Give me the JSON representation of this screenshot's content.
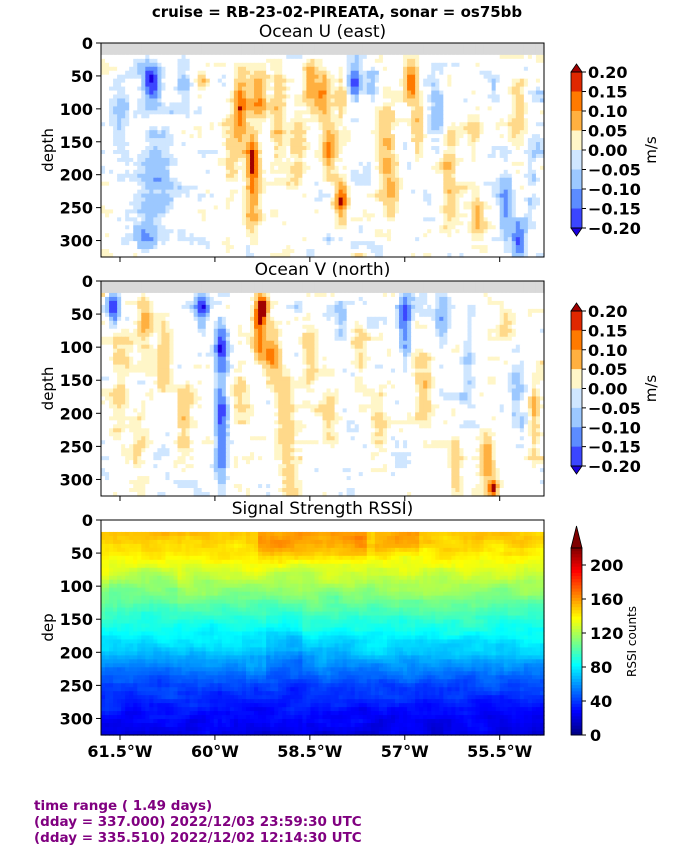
{
  "suptitle": "cruise = RB-23-02-PIREATA,  sonar = os75bb",
  "footer": {
    "line1": "time range ( 1.49 days)",
    "line2": "(dday = 337.000) 2022/12/03 23:59:30 UTC",
    "line3": "(dday = 335.510) 2022/12/02 12:14:30 UTC"
  },
  "colors": {
    "missing": "#d9d9d9",
    "velocity_levels": [
      "#1a00e0",
      "#3b46ff",
      "#5c8cff",
      "#9cc8ff",
      "#cfe6ff",
      "#ffffff",
      "#fff6c8",
      "#ffd98a",
      "#ffb040",
      "#ff7a00",
      "#e02800",
      "#a00000"
    ],
    "rssi_colormap": [
      "#00007f",
      "#0000ff",
      "#007fff",
      "#00ffff",
      "#7fff7f",
      "#ffff00",
      "#ff7f00",
      "#ff0000",
      "#7f0000"
    ]
  },
  "chart_data": [
    {
      "type": "heatmap",
      "title": "Ocean U (east)",
      "ylabel": "depth",
      "colorbar_label": "m/s",
      "xlim": [
        -61.8,
        -54.8
      ],
      "ylim": [
        325,
        0
      ],
      "xticks": [
        -61.5,
        -60,
        -58.5,
        -57,
        -55.5
      ],
      "xticklabels": [],
      "yticks": [
        0,
        50,
        100,
        150,
        200,
        250,
        300
      ],
      "yticklabels": [
        "0",
        "50",
        "100",
        "150",
        "200",
        "250",
        "300"
      ],
      "levels": [
        -0.2,
        -0.15,
        -0.1,
        -0.05,
        0,
        0.05,
        0.1,
        0.15,
        0.2
      ],
      "colorbar_ticks": [
        "0.20",
        "0.15",
        "0.10",
        "0.05",
        "0.00",
        "−0.05",
        "−0.10",
        "−0.15",
        "−0.20"
      ],
      "extend": "both",
      "features": [
        {
          "lon": -61.0,
          "depth": 60,
          "value": -0.22,
          "wlon": 0.12,
          "wdep": 25
        },
        {
          "lon": -61.5,
          "depth": 120,
          "value": -0.08,
          "wlon": 0.15,
          "wdep": 60
        },
        {
          "lon": -60.9,
          "depth": 200,
          "value": -0.08,
          "wlon": 0.3,
          "wdep": 80
        },
        {
          "lon": -61.1,
          "depth": 300,
          "value": -0.1,
          "wlon": 0.15,
          "wdep": 25
        },
        {
          "lon": -60.5,
          "depth": 60,
          "value": -0.12,
          "wlon": 0.12,
          "wdep": 25
        },
        {
          "lon": -60.2,
          "depth": 60,
          "value": 0.08,
          "wlon": 0.1,
          "wdep": 20
        },
        {
          "lon": -59.75,
          "depth": 200,
          "value": 0.06,
          "wlon": 0.12,
          "wdep": 60
        },
        {
          "lon": -59.6,
          "depth": 100,
          "value": 0.2,
          "wlon": 0.12,
          "wdep": 50
        },
        {
          "lon": -59.4,
          "depth": 180,
          "value": 0.22,
          "wlon": 0.1,
          "wdep": 40
        },
        {
          "lon": -59.3,
          "depth": 80,
          "value": 0.16,
          "wlon": 0.12,
          "wdep": 35
        },
        {
          "lon": -59.4,
          "depth": 250,
          "value": 0.1,
          "wlon": 0.12,
          "wdep": 50
        },
        {
          "lon": -59.0,
          "depth": 100,
          "value": 0.1,
          "wlon": 0.12,
          "wdep": 60
        },
        {
          "lon": -58.7,
          "depth": 160,
          "value": 0.07,
          "wlon": 0.12,
          "wdep": 60
        },
        {
          "lon": -58.5,
          "depth": 60,
          "value": 0.18,
          "wlon": 0.1,
          "wdep": 30
        },
        {
          "lon": -58.3,
          "depth": 80,
          "value": 0.15,
          "wlon": 0.12,
          "wdep": 35
        },
        {
          "lon": -58.2,
          "depth": 160,
          "value": 0.17,
          "wlon": 0.1,
          "wdep": 40
        },
        {
          "lon": -58.0,
          "depth": 240,
          "value": 0.22,
          "wlon": 0.1,
          "wdep": 30
        },
        {
          "lon": -58.0,
          "depth": 80,
          "value": 0.07,
          "wlon": 0.1,
          "wdep": 40
        },
        {
          "lon": -57.8,
          "depth": 60,
          "value": -0.16,
          "wlon": 0.1,
          "wdep": 25
        },
        {
          "lon": -57.5,
          "depth": 60,
          "value": -0.07,
          "wlon": 0.1,
          "wdep": 25
        },
        {
          "lon": -57.3,
          "depth": 150,
          "value": 0.1,
          "wlon": 0.15,
          "wdep": 80
        },
        {
          "lon": -57.2,
          "depth": 240,
          "value": 0.08,
          "wlon": 0.12,
          "wdep": 40
        },
        {
          "lon": -56.9,
          "depth": 60,
          "value": 0.17,
          "wlon": 0.1,
          "wdep": 30
        },
        {
          "lon": -56.8,
          "depth": 140,
          "value": 0.1,
          "wlon": 0.1,
          "wdep": 50
        },
        {
          "lon": -56.5,
          "depth": 100,
          "value": -0.08,
          "wlon": 0.15,
          "wdep": 50
        },
        {
          "lon": -56.3,
          "depth": 200,
          "value": 0.09,
          "wlon": 0.12,
          "wdep": 80
        },
        {
          "lon": -55.9,
          "depth": 150,
          "value": 0.06,
          "wlon": 0.12,
          "wdep": 50
        },
        {
          "lon": -55.85,
          "depth": 260,
          "value": 0.12,
          "wlon": 0.1,
          "wdep": 30
        },
        {
          "lon": -55.6,
          "depth": 70,
          "value": -0.06,
          "wlon": 0.12,
          "wdep": 30
        },
        {
          "lon": -55.4,
          "depth": 250,
          "value": -0.12,
          "wlon": 0.12,
          "wdep": 50
        },
        {
          "lon": -55.2,
          "depth": 300,
          "value": -0.18,
          "wlon": 0.1,
          "wdep": 25
        },
        {
          "lon": -55.2,
          "depth": 100,
          "value": 0.08,
          "wlon": 0.12,
          "wdep": 50
        },
        {
          "lon": -55.0,
          "depth": 200,
          "value": -0.07,
          "wlon": 0.12,
          "wdep": 60
        }
      ]
    },
    {
      "type": "heatmap",
      "title": "Ocean V (north)",
      "ylabel": "depth",
      "colorbar_label": "m/s",
      "xlim": [
        -61.8,
        -54.8
      ],
      "ylim": [
        325,
        0
      ],
      "xticks": [
        -61.5,
        -60,
        -58.5,
        -57,
        -55.5
      ],
      "xticklabels": [],
      "yticks": [
        0,
        50,
        100,
        150,
        200,
        250,
        300
      ],
      "yticklabels": [
        "0",
        "50",
        "100",
        "150",
        "200",
        "250",
        "300"
      ],
      "levels": [
        -0.2,
        -0.15,
        -0.1,
        -0.05,
        0,
        0.05,
        0.1,
        0.15,
        0.2
      ],
      "colorbar_ticks": [
        "0.20",
        "0.15",
        "0.10",
        "0.05",
        "0.00",
        "−0.05",
        "−0.10",
        "−0.15",
        "−0.20"
      ],
      "extend": "both",
      "features": [
        {
          "lon": -61.6,
          "depth": 40,
          "value": -0.22,
          "wlon": 0.1,
          "wdep": 25
        },
        {
          "lon": -61.5,
          "depth": 160,
          "value": 0.07,
          "wlon": 0.15,
          "wdep": 80
        },
        {
          "lon": -61.1,
          "depth": 60,
          "value": 0.12,
          "wlon": 0.12,
          "wdep": 40
        },
        {
          "lon": -61.2,
          "depth": 250,
          "value": 0.06,
          "wlon": 0.15,
          "wdep": 60
        },
        {
          "lon": -60.8,
          "depth": 120,
          "value": 0.08,
          "wlon": 0.12,
          "wdep": 60
        },
        {
          "lon": -60.5,
          "depth": 200,
          "value": 0.1,
          "wlon": 0.12,
          "wdep": 50
        },
        {
          "lon": -60.2,
          "depth": 40,
          "value": -0.18,
          "wlon": 0.1,
          "wdep": 25
        },
        {
          "lon": -59.9,
          "depth": 100,
          "value": -0.2,
          "wlon": 0.1,
          "wdep": 35
        },
        {
          "lon": -59.9,
          "depth": 200,
          "value": -0.18,
          "wlon": 0.1,
          "wdep": 50
        },
        {
          "lon": -59.9,
          "depth": 280,
          "value": -0.12,
          "wlon": 0.1,
          "wdep": 40
        },
        {
          "lon": -59.6,
          "depth": 150,
          "value": 0.06,
          "wlon": 0.12,
          "wdep": 60
        },
        {
          "lon": -59.3,
          "depth": 80,
          "value": 0.18,
          "wlon": 0.1,
          "wdep": 45
        },
        {
          "lon": -59.25,
          "depth": 40,
          "value": 0.22,
          "wlon": 0.1,
          "wdep": 20
        },
        {
          "lon": -59.1,
          "depth": 110,
          "value": 0.15,
          "wlon": 0.12,
          "wdep": 40
        },
        {
          "lon": -58.9,
          "depth": 200,
          "value": 0.1,
          "wlon": 0.15,
          "wdep": 60
        },
        {
          "lon": -58.8,
          "depth": 280,
          "value": 0.06,
          "wlon": 0.15,
          "wdep": 40
        },
        {
          "lon": -58.5,
          "depth": 100,
          "value": 0.08,
          "wlon": 0.12,
          "wdep": 60
        },
        {
          "lon": -58.2,
          "depth": 200,
          "value": 0.06,
          "wlon": 0.15,
          "wdep": 60
        },
        {
          "lon": -58.0,
          "depth": 60,
          "value": -0.06,
          "wlon": 0.12,
          "wdep": 40
        },
        {
          "lon": -57.7,
          "depth": 120,
          "value": 0.07,
          "wlon": 0.12,
          "wdep": 60
        },
        {
          "lon": -57.4,
          "depth": 220,
          "value": 0.07,
          "wlon": 0.12,
          "wdep": 60
        },
        {
          "lon": -57.0,
          "depth": 50,
          "value": -0.18,
          "wlon": 0.1,
          "wdep": 30
        },
        {
          "lon": -57.0,
          "depth": 100,
          "value": -0.1,
          "wlon": 0.1,
          "wdep": 30
        },
        {
          "lon": -56.7,
          "depth": 160,
          "value": 0.1,
          "wlon": 0.15,
          "wdep": 60
        },
        {
          "lon": -56.4,
          "depth": 60,
          "value": -0.08,
          "wlon": 0.12,
          "wdep": 35
        },
        {
          "lon": -56.2,
          "depth": 280,
          "value": 0.12,
          "wlon": 0.1,
          "wdep": 40
        },
        {
          "lon": -56.0,
          "depth": 130,
          "value": -0.06,
          "wlon": 0.12,
          "wdep": 50
        },
        {
          "lon": -55.7,
          "depth": 270,
          "value": 0.15,
          "wlon": 0.1,
          "wdep": 40
        },
        {
          "lon": -55.6,
          "depth": 315,
          "value": 0.22,
          "wlon": 0.08,
          "wdep": 15
        },
        {
          "lon": -55.4,
          "depth": 60,
          "value": 0.07,
          "wlon": 0.12,
          "wdep": 40
        },
        {
          "lon": -55.2,
          "depth": 180,
          "value": -0.06,
          "wlon": 0.12,
          "wdep": 50
        },
        {
          "lon": -54.95,
          "depth": 210,
          "value": 0.12,
          "wlon": 0.08,
          "wdep": 50
        }
      ]
    },
    {
      "type": "heatmap",
      "title": "Signal Strength RSSI)",
      "ylabel": "dep",
      "colorbar_label": "RSSI counts",
      "xlim": [
        -61.8,
        -54.8
      ],
      "ylim": [
        325,
        0
      ],
      "xticks": [
        -61.5,
        -60,
        -58.5,
        -57,
        -55.5
      ],
      "xticklabels": [
        "61.5°W",
        "60°W",
        "58.5°W",
        "57°W",
        "55.5°W"
      ],
      "yticks": [
        0,
        50,
        100,
        150,
        200,
        250,
        300
      ],
      "yticklabels": [
        "0",
        "50",
        "100",
        "150",
        "200",
        "250",
        "300"
      ],
      "clim": [
        0,
        220
      ],
      "colorbar_ticks": [
        "200",
        "160",
        "120",
        "80",
        "40",
        "0"
      ],
      "colorbar_tick_values": [
        200,
        160,
        120,
        80,
        40,
        0
      ],
      "extend": "max",
      "profile_depths": [
        20,
        50,
        100,
        150,
        200,
        250,
        300,
        325
      ],
      "profile_values": [
        150,
        142,
        118,
        92,
        70,
        42,
        28,
        22
      ],
      "anomalies": [
        {
          "lon_from": -59.3,
          "lon_to": -57.6,
          "depth": 35,
          "value": 12,
          "wdep": 25
        },
        {
          "lon_from": -57.5,
          "lon_to": -56.8,
          "depth": 30,
          "value": 10,
          "wdep": 20
        },
        {
          "lon_from": -61.7,
          "lon_to": -60.6,
          "depth": 90,
          "value": -6,
          "wdep": 40
        },
        {
          "lon_from": -59.2,
          "lon_to": -58.6,
          "depth": 190,
          "value": -8,
          "wdep": 40
        }
      ]
    }
  ]
}
